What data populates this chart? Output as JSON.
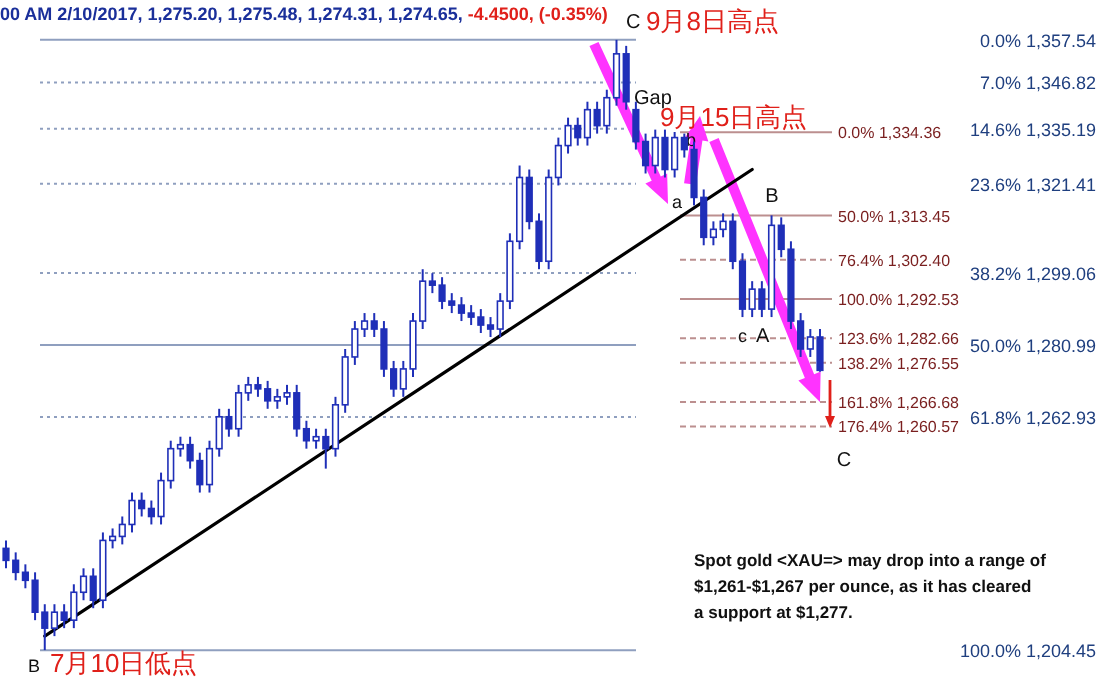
{
  "chart_data": {
    "type": "candlestick",
    "title": "00 AM 2/10/2017, 1,275.20, 1,275.48, 1,274.31, 1,274.65,",
    "subtitle": "-4.4500, (-0.35%)",
    "color": "#1f2fb8",
    "ylim": [
      1197,
      1367.5
    ],
    "categories": [
      null,
      null,
      null,
      null,
      null,
      null,
      null,
      null,
      null,
      null,
      null,
      null,
      null,
      null,
      null,
      null,
      null,
      null,
      null,
      null,
      null,
      null,
      null,
      null,
      null,
      null,
      null,
      null,
      null,
      null,
      null,
      null,
      null,
      null,
      null,
      null,
      null,
      null,
      null,
      null,
      null,
      null,
      null,
      null,
      null,
      null,
      null,
      null,
      null,
      null,
      null,
      null,
      null,
      null,
      null,
      null,
      null,
      null,
      null,
      null,
      null,
      null,
      null,
      null,
      null,
      null,
      null,
      null,
      null,
      null,
      null,
      null,
      null,
      null,
      null,
      null,
      null,
      null,
      null,
      null,
      null,
      null,
      null,
      null,
      null
    ],
    "ohlc": [
      [
        1230,
        1232,
        1225,
        1227
      ],
      [
        1227,
        1229,
        1222,
        1224
      ],
      [
        1224,
        1226,
        1220,
        1222
      ],
      [
        1222,
        1224,
        1212,
        1214
      ],
      [
        1214,
        1216,
        1204.5,
        1210
      ],
      [
        1210,
        1216,
        1208,
        1214
      ],
      [
        1214,
        1216,
        1210,
        1212
      ],
      [
        1212,
        1221,
        1210,
        1219
      ],
      [
        1219,
        1225,
        1217,
        1223
      ],
      [
        1223,
        1225,
        1215,
        1217
      ],
      [
        1217,
        1234,
        1215,
        1232
      ],
      [
        1232,
        1235,
        1230,
        1233
      ],
      [
        1233,
        1238,
        1231,
        1236
      ],
      [
        1236,
        1244,
        1234,
        1242
      ],
      [
        1242,
        1244,
        1238,
        1240
      ],
      [
        1240,
        1242,
        1236,
        1238
      ],
      [
        1238,
        1249,
        1236,
        1247
      ],
      [
        1247,
        1257,
        1245,
        1255
      ],
      [
        1255,
        1258,
        1253,
        1256
      ],
      [
        1256,
        1258,
        1250,
        1252
      ],
      [
        1252,
        1254,
        1244,
        1246
      ],
      [
        1246,
        1257,
        1244,
        1255
      ],
      [
        1255,
        1265,
        1253,
        1263
      ],
      [
        1263,
        1265,
        1258,
        1260
      ],
      [
        1260,
        1271,
        1258,
        1269
      ],
      [
        1269,
        1273,
        1267,
        1271
      ],
      [
        1271,
        1273,
        1268,
        1270
      ],
      [
        1270,
        1272,
        1265,
        1267
      ],
      [
        1267,
        1270,
        1265,
        1268
      ],
      [
        1268,
        1271,
        1266,
        1269
      ],
      [
        1269,
        1271,
        1258,
        1260
      ],
      [
        1260,
        1262,
        1255,
        1257
      ],
      [
        1257,
        1260,
        1255,
        1258
      ],
      [
        1258,
        1260,
        1250,
        1255
      ],
      [
        1255,
        1268,
        1253,
        1266
      ],
      [
        1266,
        1280,
        1264,
        1278
      ],
      [
        1278,
        1287,
        1276,
        1285
      ],
      [
        1285,
        1289,
        1283,
        1287
      ],
      [
        1287,
        1289,
        1283,
        1285
      ],
      [
        1285,
        1287,
        1273,
        1275
      ],
      [
        1275,
        1277,
        1268,
        1270
      ],
      [
        1270,
        1277,
        1268,
        1275
      ],
      [
        1275,
        1289,
        1273,
        1287
      ],
      [
        1287,
        1300,
        1285,
        1297
      ],
      [
        1297,
        1299,
        1294,
        1296
      ],
      [
        1296,
        1298,
        1290,
        1292
      ],
      [
        1292,
        1294,
        1289,
        1291
      ],
      [
        1291,
        1293,
        1287,
        1289
      ],
      [
        1289,
        1291,
        1286,
        1288
      ],
      [
        1288,
        1290,
        1284,
        1286
      ],
      [
        1286,
        1288,
        1283,
        1285
      ],
      [
        1285,
        1294,
        1283,
        1292
      ],
      [
        1292,
        1309,
        1290,
        1307
      ],
      [
        1307,
        1326,
        1305,
        1323
      ],
      [
        1323,
        1325,
        1310,
        1312
      ],
      [
        1312,
        1314,
        1300,
        1302
      ],
      [
        1302,
        1325,
        1300,
        1323
      ],
      [
        1323,
        1333,
        1321,
        1331
      ],
      [
        1331,
        1338,
        1329,
        1336
      ],
      [
        1336,
        1338,
        1331,
        1333
      ],
      [
        1333,
        1342,
        1331,
        1340
      ],
      [
        1340,
        1342,
        1334,
        1336
      ],
      [
        1336,
        1345,
        1334,
        1343
      ],
      [
        1343,
        1357.5,
        1341,
        1354
      ],
      [
        1354,
        1356,
        1340,
        1342
      ],
      [
        1340,
        1342,
        1330,
        1332
      ],
      [
        1332,
        1334,
        1324,
        1326
      ],
      [
        1326,
        1335,
        1324,
        1333
      ],
      [
        1333,
        1335,
        1323,
        1325
      ],
      [
        1325,
        1334.4,
        1323,
        1333
      ],
      [
        1333,
        1334,
        1328,
        1330
      ],
      [
        1330,
        1332,
        1316,
        1318
      ],
      [
        1318,
        1320,
        1306,
        1308
      ],
      [
        1308,
        1312,
        1306,
        1310
      ],
      [
        1310,
        1314,
        1308,
        1312
      ],
      [
        1312,
        1314,
        1300,
        1302
      ],
      [
        1302,
        1304,
        1288,
        1290
      ],
      [
        1290,
        1297,
        1288,
        1295
      ],
      [
        1295,
        1297,
        1288,
        1290
      ],
      [
        1290,
        1313.5,
        1288,
        1311
      ],
      [
        1311,
        1313,
        1303,
        1305
      ],
      [
        1305,
        1307,
        1285,
        1287
      ],
      [
        1287,
        1289,
        1278,
        1280
      ],
      [
        1280,
        1285,
        1278,
        1283
      ],
      [
        1283,
        1285,
        1274.3,
        1274.65
      ]
    ],
    "series": [
      {
        "type": "line",
        "values": [
          null,
          null,
          null,
          null,
          1208,
          null,
          null,
          null,
          null,
          null,
          null,
          null,
          null,
          null,
          null,
          null,
          null,
          null,
          null,
          null,
          null,
          null,
          null,
          null,
          null,
          null,
          null,
          null,
          null,
          null,
          null,
          null,
          null,
          null,
          null,
          null,
          null,
          null,
          null,
          null,
          null,
          null,
          null,
          null,
          null,
          null,
          null,
          null,
          null,
          null,
          null,
          null,
          null,
          null,
          null,
          null,
          null,
          null,
          null,
          null,
          null,
          null,
          null,
          null,
          null,
          null,
          null,
          null,
          null,
          null,
          null,
          null,
          null,
          null,
          null,
          null,
          null,
          1325,
          null,
          null,
          null,
          null,
          null,
          null,
          null
        ],
        "color": "#000000"
      }
    ],
    "ref_lines": [
      {
        "axis": "y",
        "value": 1357.54,
        "label": "0.0% 1,357.54",
        "color": "#1f3f7f",
        "line_style": "solid"
      },
      {
        "axis": "y",
        "value": 1346.82,
        "label": "7.0% 1,346.82",
        "color": "#1f3f7f",
        "line_style": "dotted"
      },
      {
        "axis": "y",
        "value": 1335.19,
        "label": "14.6% 1,335.19",
        "color": "#1f3f7f",
        "line_style": "dotted"
      },
      {
        "axis": "y",
        "value": 1321.41,
        "label": "23.6% 1,321.41",
        "color": "#1f3f7f",
        "line_style": "dotted"
      },
      {
        "axis": "y",
        "value": 1299.06,
        "label": "38.2% 1,299.06",
        "color": "#1f3f7f",
        "line_style": "dotted"
      },
      {
        "axis": "y",
        "value": 1280.99,
        "label": "50.0% 1,280.99",
        "color": "#1f3f7f",
        "line_style": "solid"
      },
      {
        "axis": "y",
        "value": 1262.93,
        "label": "61.8% 1,262.93",
        "color": "#1f3f7f",
        "line_style": "dotted"
      },
      {
        "axis": "y",
        "value": 1204.45,
        "label": "100.0% 1,204.45",
        "color": "#1f3f7f",
        "line_style": "solid"
      },
      {
        "axis": "y",
        "value": 1334.36,
        "label": "0.0% 1,334.36",
        "color": "#7a1f1f",
        "line_style": "solid"
      },
      {
        "axis": "y",
        "value": 1313.45,
        "label": "50.0% 1,313.45",
        "color": "#7a1f1f",
        "line_style": "solid"
      },
      {
        "axis": "y",
        "value": 1302.4,
        "label": "76.4% 1,302.40",
        "color": "#7a1f1f",
        "line_style": "dashed"
      },
      {
        "axis": "y",
        "value": 1292.53,
        "label": "100.0% 1,292.53",
        "color": "#7a1f1f",
        "line_style": "solid"
      },
      {
        "axis": "y",
        "value": 1282.66,
        "label": "123.6% 1,282.66",
        "color": "#7a1f1f",
        "line_style": "dashed"
      },
      {
        "axis": "y",
        "value": 1276.55,
        "label": "138.2% 1,276.55",
        "color": "#7a1f1f",
        "line_style": "dashed"
      },
      {
        "axis": "y",
        "value": 1266.68,
        "label": "161.8% 1,266.68",
        "color": "#7a1f1f",
        "line_style": "dashed"
      },
      {
        "axis": "y",
        "value": 1260.57,
        "label": "176.4% 1,260.57",
        "color": "#7a1f1f",
        "line_style": "dashed"
      }
    ],
    "annotations": [
      "C",
      "9月8日高点",
      "Gap",
      "9月15日高点",
      "b",
      "a",
      "B",
      "c",
      "A",
      "C",
      "B",
      "7月10日低点",
      "Spot gold <XAU=> may drop into a range of $1,261-$1,267 per ounce, as it has cleared a support at $1,277."
    ]
  }
}
